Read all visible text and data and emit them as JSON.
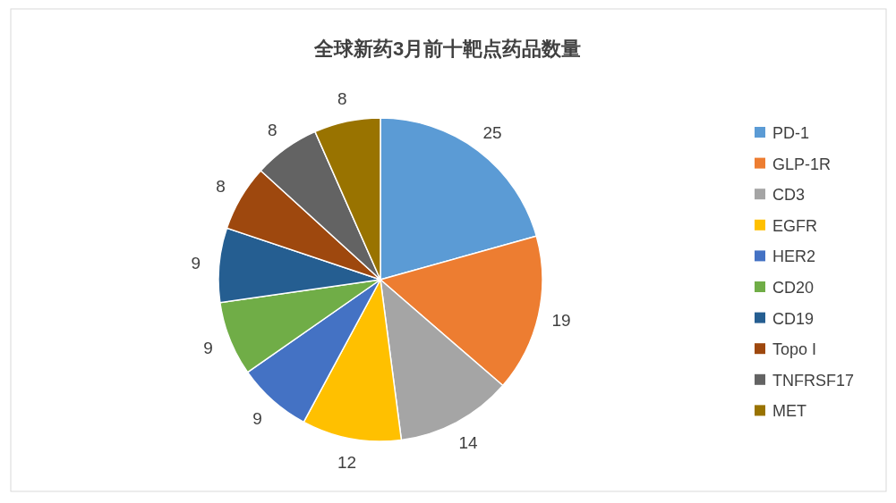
{
  "chart_data": {
    "type": "pie",
    "title": "全球新药3月前十靶点药品数量",
    "categories": [
      "PD-1",
      "GLP-1R",
      "CD3",
      "EGFR",
      "HER2",
      "CD20",
      "CD19",
      "Topo I",
      "TNFRSF17",
      "MET"
    ],
    "values": [
      25,
      19,
      14,
      12,
      9,
      9,
      9,
      8,
      8,
      8
    ],
    "colors": [
      "#5b9bd5",
      "#ed7d31",
      "#a5a5a5",
      "#ffc000",
      "#4472c4",
      "#70ad47",
      "#255e91",
      "#9e480e",
      "#636363",
      "#997300"
    ],
    "data_labels": true,
    "legend": "right"
  }
}
